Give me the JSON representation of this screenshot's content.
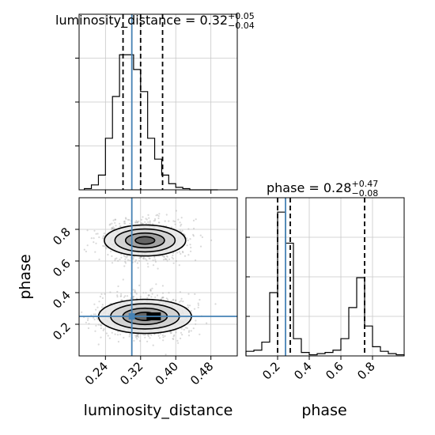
{
  "chart_data": {
    "type": "corner",
    "parameters": [
      "luminosity_distance",
      "phase"
    ],
    "truths": {
      "luminosity_distance": 0.3,
      "phase": 0.25
    },
    "titles": [
      {
        "param": "luminosity_distance",
        "prefix": "luminosity_distance = 0.32",
        "plus": "+0.05",
        "minus": "−0.04"
      },
      {
        "param": "phase",
        "prefix": "phase = 0.28",
        "plus": "+0.47",
        "minus": "−0.08"
      }
    ],
    "quantiles": {
      "luminosity_distance": [
        0.28,
        0.32,
        0.37
      ],
      "phase": [
        0.2,
        0.28,
        0.75
      ]
    },
    "hist_luminosity_distance": {
      "xlim": [
        0.18,
        0.54
      ],
      "bin_edges": [
        0.192,
        0.208,
        0.224,
        0.24,
        0.256,
        0.272,
        0.288,
        0.304,
        0.32,
        0.336,
        0.352,
        0.368,
        0.384,
        0.4,
        0.416,
        0.432,
        0.448,
        0.464,
        0.48,
        0.496
      ],
      "counts": [
        1,
        4,
        12,
        42,
        76,
        110,
        110,
        98,
        80,
        42,
        25,
        12,
        5,
        2,
        1,
        0,
        0,
        0,
        0
      ]
    },
    "hist_phase": {
      "xlim": [
        0.0,
        1.0
      ],
      "bin_edges": [
        0.0,
        0.05,
        0.1,
        0.15,
        0.2,
        0.25,
        0.3,
        0.35,
        0.4,
        0.45,
        0.5,
        0.55,
        0.6,
        0.65,
        0.7,
        0.75,
        0.8,
        0.85,
        0.9,
        0.95,
        1.0
      ],
      "counts": [
        4,
        5,
        12,
        55,
        125,
        98,
        15,
        3,
        1,
        2,
        3,
        5,
        15,
        42,
        68,
        26,
        8,
        4,
        2,
        1
      ]
    },
    "scatter": {
      "xlim": [
        0.18,
        0.54
      ],
      "ylim": [
        0.0,
        1.0
      ],
      "clusters": [
        {
          "cx": 0.33,
          "cy": 0.73,
          "sx": 0.035,
          "sy": 0.05
        },
        {
          "cx": 0.33,
          "cy": 0.25,
          "sx": 0.04,
          "sy": 0.055
        }
      ]
    },
    "x_ticks": {
      "luminosity_distance": [
        "0.24",
        "0.32",
        "0.40",
        "0.48"
      ],
      "phase": [
        "0.2",
        "0.4",
        "0.6",
        "0.8"
      ]
    },
    "y_ticks": {
      "phase": [
        "0.2",
        "0.4",
        "0.6",
        "0.8"
      ]
    },
    "xlabels": [
      "luminosity_distance",
      "phase"
    ],
    "ylabel": "phase",
    "grid": true,
    "colors": {
      "truth": "#4682b4",
      "hist": "#000000",
      "scatter": "#aaaaaa",
      "quantile": "#000000"
    }
  }
}
